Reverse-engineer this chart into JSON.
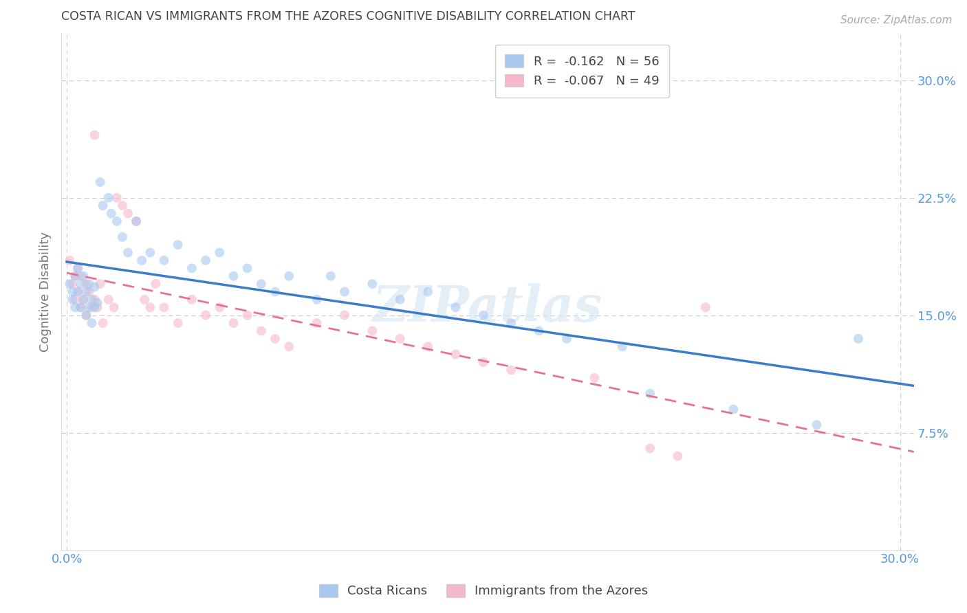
{
  "title": "COSTA RICAN VS IMMIGRANTS FROM THE AZORES COGNITIVE DISABILITY CORRELATION CHART",
  "source": "Source: ZipAtlas.com",
  "ylabel": "Cognitive Disability",
  "ytick_vals": [
    0.075,
    0.15,
    0.225,
    0.3
  ],
  "xtick_vals": [
    0.0,
    0.3
  ],
  "xlim": [
    -0.002,
    0.305
  ],
  "ylim": [
    0.0,
    0.33
  ],
  "legend_line1": "R =  -0.162   N = 56",
  "legend_line2": "R =  -0.067   N = 49",
  "blue_color": "#a8c8f0",
  "pink_color": "#f5b8cb",
  "blue_line_color": "#3a7cc7",
  "pink_line_color": "#e87090",
  "grid_color": "#c8c8c8",
  "watermark": "ZIPatlas",
  "marker_size": 100,
  "marker_alpha": 0.6,
  "costa_ricans_x": [
    0.001,
    0.002,
    0.002,
    0.003,
    0.003,
    0.004,
    0.004,
    0.005,
    0.005,
    0.006,
    0.006,
    0.007,
    0.007,
    0.008,
    0.008,
    0.009,
    0.009,
    0.01,
    0.01,
    0.011,
    0.012,
    0.013,
    0.015,
    0.016,
    0.018,
    0.02,
    0.022,
    0.025,
    0.027,
    0.03,
    0.035,
    0.04,
    0.045,
    0.05,
    0.055,
    0.06,
    0.065,
    0.07,
    0.075,
    0.08,
    0.09,
    0.095,
    0.1,
    0.11,
    0.12,
    0.13,
    0.14,
    0.15,
    0.16,
    0.17,
    0.18,
    0.2,
    0.21,
    0.24,
    0.27,
    0.285
  ],
  "costa_ricans_y": [
    0.17,
    0.165,
    0.16,
    0.175,
    0.155,
    0.18,
    0.165,
    0.17,
    0.155,
    0.16,
    0.175,
    0.15,
    0.165,
    0.155,
    0.17,
    0.145,
    0.16,
    0.155,
    0.168,
    0.158,
    0.235,
    0.22,
    0.225,
    0.215,
    0.21,
    0.2,
    0.19,
    0.21,
    0.185,
    0.19,
    0.185,
    0.195,
    0.18,
    0.185,
    0.19,
    0.175,
    0.18,
    0.17,
    0.165,
    0.175,
    0.16,
    0.175,
    0.165,
    0.17,
    0.16,
    0.165,
    0.155,
    0.15,
    0.145,
    0.14,
    0.135,
    0.13,
    0.1,
    0.09,
    0.08,
    0.135
  ],
  "azores_x": [
    0.001,
    0.002,
    0.003,
    0.003,
    0.004,
    0.004,
    0.005,
    0.005,
    0.006,
    0.007,
    0.007,
    0.008,
    0.009,
    0.01,
    0.01,
    0.011,
    0.012,
    0.013,
    0.015,
    0.017,
    0.018,
    0.02,
    0.022,
    0.025,
    0.028,
    0.03,
    0.032,
    0.035,
    0.04,
    0.045,
    0.05,
    0.055,
    0.06,
    0.065,
    0.07,
    0.075,
    0.08,
    0.09,
    0.1,
    0.11,
    0.12,
    0.13,
    0.14,
    0.15,
    0.16,
    0.19,
    0.21,
    0.22,
    0.23
  ],
  "azores_y": [
    0.185,
    0.17,
    0.175,
    0.16,
    0.18,
    0.165,
    0.175,
    0.155,
    0.16,
    0.17,
    0.15,
    0.165,
    0.155,
    0.16,
    0.265,
    0.155,
    0.17,
    0.145,
    0.16,
    0.155,
    0.225,
    0.22,
    0.215,
    0.21,
    0.16,
    0.155,
    0.17,
    0.155,
    0.145,
    0.16,
    0.15,
    0.155,
    0.145,
    0.15,
    0.14,
    0.135,
    0.13,
    0.145,
    0.15,
    0.14,
    0.135,
    0.13,
    0.125,
    0.12,
    0.115,
    0.11,
    0.065,
    0.06,
    0.155
  ]
}
